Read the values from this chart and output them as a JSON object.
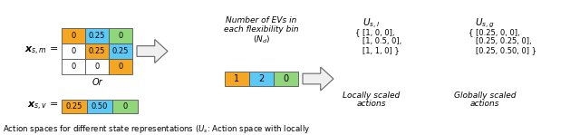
{
  "bg_color": "#ffffff",
  "matrix_colors": [
    [
      "#f5a623",
      "#5bc8f5",
      "#90d67a"
    ],
    [
      "#ffffff",
      "#f5a623",
      "#5bc8f5"
    ],
    [
      "#ffffff",
      "#ffffff",
      "#f5a623"
    ]
  ],
  "matrix_values": [
    [
      "0",
      "0.25",
      "0"
    ],
    [
      "0",
      "0.25",
      "0.25"
    ],
    [
      "0",
      "0",
      "0"
    ]
  ],
  "bar1_colors": [
    "#f5a623",
    "#5bc8f5",
    "#90d67a"
  ],
  "bar1_values": [
    "1",
    "2",
    "0"
  ],
  "bar2_colors": [
    "#f5a623",
    "#5bc8f5",
    "#90d67a"
  ],
  "bar2_values": [
    "0.25",
    "0.50",
    "0"
  ],
  "label_xsm": "$\\boldsymbol{x}_{s,m}$",
  "label_xsv": "$\\boldsymbol{x}_{s,v}$",
  "label_or": "Or",
  "label_nd_line1": "Number of EVs in",
  "label_nd_line2": "each flexibility bin",
  "label_nd_line3": "$(N_d)$",
  "label_Usl": "$U_{s,l}$",
  "label_Usg": "$U_{s,g}$",
  "text_Usl_lines": [
    "{ [1, 0, 0],",
    "   [1, 0.5, 0],",
    "   [1, 1, 0] }"
  ],
  "text_Usg_lines": [
    "{ [0.25, 0, 0],",
    "   [0.25, 0.25, 0],",
    "   [0.25, 0.50, 0] }"
  ],
  "text_locally_line1": "Locally scaled",
  "text_locally_line2": "actions",
  "text_globally_line1": "Globally scaled",
  "text_globally_line2": "actions",
  "caption": "Action spaces for different state representations ($U_s$: Action space with locally",
  "cell_edge_color": "#555555",
  "arrow_face_color": "#f0f0f0",
  "arrow_edge_color": "#666666"
}
